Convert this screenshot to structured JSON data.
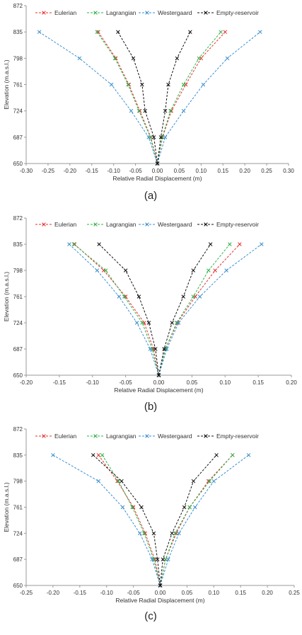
{
  "chart_data": [
    {
      "type": "line",
      "panel": "(a)",
      "xlabel": "Relative Radial Displacement (m)",
      "ylabel": "Elevation (m.a.s.l.)",
      "xlim": [
        -0.3,
        0.3
      ],
      "ylim": [
        650,
        872
      ],
      "xticks": [
        "-0.30",
        "-0.25",
        "-0.20",
        "-0.15",
        "-0.10",
        "-0.05",
        "0.00",
        "0.05",
        "0.10",
        "0.15",
        "0.20",
        "0.25",
        "0.30"
      ],
      "yticks": [
        "650",
        "687",
        "724",
        "761",
        "798",
        "835",
        "872"
      ],
      "legend_position": "top",
      "grid": false,
      "series": [
        {
          "name": "Eulerian",
          "color": "#e8312f",
          "left": [
            [
              -0.135,
              835
            ],
            [
              -0.095,
              798
            ],
            [
              -0.065,
              761
            ],
            [
              -0.04,
              724
            ],
            [
              -0.015,
              687
            ],
            [
              0.0,
              650
            ]
          ],
          "right": [
            [
              0.0,
              650
            ],
            [
              0.012,
              687
            ],
            [
              0.032,
              724
            ],
            [
              0.065,
              761
            ],
            [
              0.1,
              798
            ],
            [
              0.155,
              835
            ]
          ]
        },
        {
          "name": "Lagrangian",
          "color": "#2fb34a",
          "left": [
            [
              -0.138,
              835
            ],
            [
              -0.097,
              798
            ],
            [
              -0.067,
              761
            ],
            [
              -0.042,
              724
            ],
            [
              -0.016,
              687
            ],
            [
              0.0,
              650
            ]
          ],
          "right": [
            [
              0.0,
              650
            ],
            [
              0.011,
              687
            ],
            [
              0.03,
              724
            ],
            [
              0.06,
              761
            ],
            [
              0.095,
              798
            ],
            [
              0.145,
              835
            ]
          ]
        },
        {
          "name": "Westergaard",
          "color": "#3a8fd0",
          "left": [
            [
              -0.27,
              835
            ],
            [
              -0.178,
              798
            ],
            [
              -0.105,
              761
            ],
            [
              -0.06,
              724
            ],
            [
              -0.02,
              687
            ],
            [
              0.0,
              650
            ]
          ],
          "right": [
            [
              0.0,
              650
            ],
            [
              0.018,
              687
            ],
            [
              0.06,
              724
            ],
            [
              0.105,
              761
            ],
            [
              0.16,
              798
            ],
            [
              0.235,
              835
            ]
          ]
        },
        {
          "name": "Empty-reservoir",
          "color": "#111111",
          "left": [
            [
              -0.09,
              835
            ],
            [
              -0.055,
              798
            ],
            [
              -0.035,
              761
            ],
            [
              -0.028,
              724
            ],
            [
              -0.008,
              687
            ],
            [
              0.0,
              650
            ]
          ],
          "right": [
            [
              0.0,
              650
            ],
            [
              0.008,
              687
            ],
            [
              0.018,
              724
            ],
            [
              0.025,
              761
            ],
            [
              0.045,
              798
            ],
            [
              0.075,
              835
            ]
          ]
        }
      ]
    },
    {
      "type": "line",
      "panel": "(b)",
      "xlabel": "Relative Radial Displacement (m)",
      "ylabel": "Elevation (m.a.s.l.)",
      "xlim": [
        -0.2,
        0.2
      ],
      "ylim": [
        650,
        872
      ],
      "xticks": [
        "-0.20",
        "-0.15",
        "-0.10",
        "-0.05",
        "0.00",
        "0.05",
        "0.10",
        "0.15",
        "0.20"
      ],
      "yticks": [
        "650",
        "687",
        "724",
        "761",
        "798",
        "835",
        "872"
      ],
      "legend_position": "top",
      "grid": false,
      "series": [
        {
          "name": "Eulerian",
          "color": "#e8312f",
          "left": [
            [
              -0.127,
              835
            ],
            [
              -0.083,
              798
            ],
            [
              -0.05,
              761
            ],
            [
              -0.022,
              724
            ],
            [
              -0.008,
              687
            ],
            [
              0.0,
              650
            ]
          ],
          "right": [
            [
              0.0,
              650
            ],
            [
              0.01,
              687
            ],
            [
              0.028,
              724
            ],
            [
              0.055,
              761
            ],
            [
              0.085,
              798
            ],
            [
              0.122,
              835
            ]
          ]
        },
        {
          "name": "Lagrangian",
          "color": "#2fb34a",
          "left": [
            [
              -0.128,
              835
            ],
            [
              -0.08,
              798
            ],
            [
              -0.052,
              761
            ],
            [
              -0.025,
              724
            ],
            [
              -0.01,
              687
            ],
            [
              0.0,
              650
            ]
          ],
          "right": [
            [
              0.0,
              650
            ],
            [
              0.01,
              687
            ],
            [
              0.027,
              724
            ],
            [
              0.052,
              761
            ],
            [
              0.075,
              798
            ],
            [
              0.107,
              835
            ]
          ]
        },
        {
          "name": "Westergaard",
          "color": "#3a8fd0",
          "left": [
            [
              -0.135,
              835
            ],
            [
              -0.093,
              798
            ],
            [
              -0.06,
              761
            ],
            [
              -0.033,
              724
            ],
            [
              -0.013,
              687
            ],
            [
              0.0,
              650
            ]
          ],
          "right": [
            [
              0.0,
              650
            ],
            [
              0.012,
              687
            ],
            [
              0.03,
              724
            ],
            [
              0.062,
              761
            ],
            [
              0.102,
              798
            ],
            [
              0.155,
              835
            ]
          ]
        },
        {
          "name": "Empty-reservoir",
          "color": "#111111",
          "left": [
            [
              -0.09,
              835
            ],
            [
              -0.05,
              798
            ],
            [
              -0.03,
              761
            ],
            [
              -0.015,
              724
            ],
            [
              -0.005,
              687
            ],
            [
              0.0,
              650
            ]
          ],
          "right": [
            [
              0.0,
              650
            ],
            [
              0.008,
              687
            ],
            [
              0.02,
              724
            ],
            [
              0.037,
              761
            ],
            [
              0.052,
              798
            ],
            [
              0.078,
              835
            ]
          ]
        }
      ]
    },
    {
      "type": "line",
      "panel": "(c)",
      "xlabel": "Relative Radial Displacement (m)",
      "ylabel": "Elevation (m.a.s.l.)",
      "xlim": [
        -0.25,
        0.25
      ],
      "ylim": [
        650,
        872
      ],
      "xticks": [
        "-0.25",
        "-0.20",
        "-0.15",
        "-0.10",
        "-0.05",
        "0.00",
        "0.05",
        "0.10",
        "0.15",
        "0.20",
        "0.25"
      ],
      "yticks": [
        "650",
        "687",
        "724",
        "761",
        "798",
        "835",
        "872"
      ],
      "legend_position": "top",
      "grid": false,
      "series": [
        {
          "name": "Eulerian",
          "color": "#e8312f",
          "left": [
            [
              -0.115,
              835
            ],
            [
              -0.08,
              798
            ],
            [
              -0.05,
              761
            ],
            [
              -0.028,
              724
            ],
            [
              -0.01,
              687
            ],
            [
              0.0,
              650
            ]
          ],
          "right": [
            [
              0.0,
              650
            ],
            [
              0.01,
              687
            ],
            [
              0.03,
              724
            ],
            [
              0.055,
              761
            ],
            [
              0.09,
              798
            ],
            [
              0.135,
              835
            ]
          ]
        },
        {
          "name": "Lagrangian",
          "color": "#2fb34a",
          "left": [
            [
              -0.108,
              835
            ],
            [
              -0.078,
              798
            ],
            [
              -0.052,
              761
            ],
            [
              -0.03,
              724
            ],
            [
              -0.012,
              687
            ],
            [
              0.0,
              650
            ]
          ],
          "right": [
            [
              0.0,
              650
            ],
            [
              0.01,
              687
            ],
            [
              0.028,
              724
            ],
            [
              0.055,
              761
            ],
            [
              0.092,
              798
            ],
            [
              0.135,
              835
            ]
          ]
        },
        {
          "name": "Westergaard",
          "color": "#3a8fd0",
          "left": [
            [
              -0.2,
              835
            ],
            [
              -0.115,
              798
            ],
            [
              -0.07,
              761
            ],
            [
              -0.038,
              724
            ],
            [
              -0.015,
              687
            ],
            [
              0.0,
              650
            ]
          ],
          "right": [
            [
              0.0,
              650
            ],
            [
              0.015,
              687
            ],
            [
              0.035,
              724
            ],
            [
              0.065,
              761
            ],
            [
              0.1,
              798
            ],
            [
              0.165,
              835
            ]
          ]
        },
        {
          "name": "Empty-reservoir",
          "color": "#111111",
          "left": [
            [
              -0.125,
              835
            ],
            [
              -0.072,
              798
            ],
            [
              -0.035,
              761
            ],
            [
              -0.012,
              724
            ],
            [
              -0.005,
              687
            ],
            [
              0.0,
              650
            ]
          ],
          "right": [
            [
              0.0,
              650
            ],
            [
              0.005,
              687
            ],
            [
              0.022,
              724
            ],
            [
              0.045,
              761
            ],
            [
              0.062,
              798
            ],
            [
              0.105,
              835
            ]
          ]
        }
      ]
    }
  ]
}
